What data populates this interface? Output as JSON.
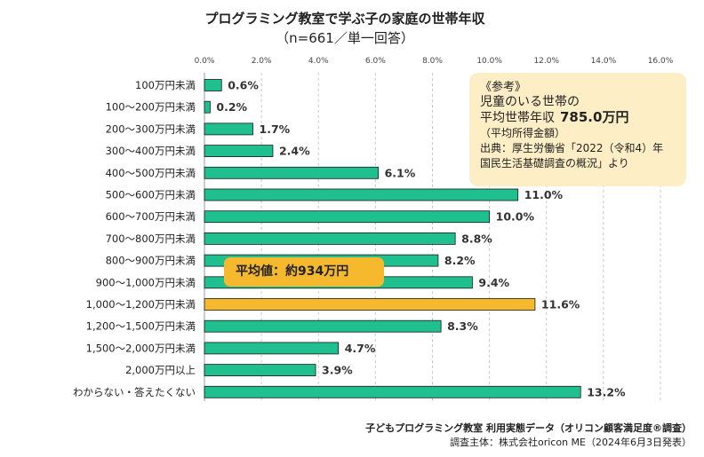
{
  "chart_data": {
    "type": "bar",
    "orientation": "horizontal",
    "title": "プログラミング教室で学ぶ子の家庭の世帯年収",
    "subtitle": "（n=661／単一回答）",
    "categories": [
      "100万円未満",
      "100～200万円未満",
      "200～300万円未満",
      "300～400万円未満",
      "400～500万円未満",
      "500～600万円未満",
      "600～700万円未満",
      "700～800万円未満",
      "800～900万円未満",
      "900～1,000万円未満",
      "1,000～1,200万円未満",
      "1,200～1,500万円未満",
      "1,500～2,000万円未満",
      "2,000万円以上",
      "わからない・答えたくない"
    ],
    "values": [
      0.6,
      0.2,
      1.7,
      2.4,
      6.1,
      11.0,
      10.0,
      8.8,
      8.2,
      9.4,
      11.6,
      8.3,
      4.7,
      3.9,
      13.2
    ],
    "value_labels": [
      "0.6%",
      "0.2%",
      "1.7%",
      "2.4%",
      "6.1%",
      "11.0%",
      "10.0%",
      "8.8%",
      "8.2%",
      "9.4%",
      "11.6%",
      "8.3%",
      "4.7%",
      "3.9%",
      "13.2%"
    ],
    "highlight_index": 10,
    "colors": {
      "bar": "#1fbf8f",
      "highlight": "#f6b92e",
      "grid": "#c8c8c8"
    },
    "xlim": [
      0,
      16
    ],
    "x_ticks": [
      0,
      2,
      4,
      6,
      8,
      10,
      12,
      14,
      16
    ],
    "x_tick_labels": [
      "0.0%",
      "2.0%",
      "4.0%",
      "6.0%",
      "8.0%",
      "10.0%",
      "12.0%",
      "14.0%",
      "16.0%"
    ],
    "xlabel": "",
    "ylabel": "",
    "grid": true
  },
  "reference": {
    "heading": "《参考》",
    "line1": "児童のいる世帯の",
    "line2_label": "平均世帯年収",
    "line2_value": "785.0万円",
    "line3": "（平均所得金額）",
    "source1": "出典：厚生労働省「2022（令和4）年",
    "source2": "国民生活基礎調査の概況」より"
  },
  "average_label": "平均値：約934万円",
  "footer": {
    "line1": "子どもプログラミング教室 利用実態データ（オリコン顧客満足度®調査）",
    "line2": "調査主体：株式会社oricon ME（2024年6月3日発表）"
  }
}
